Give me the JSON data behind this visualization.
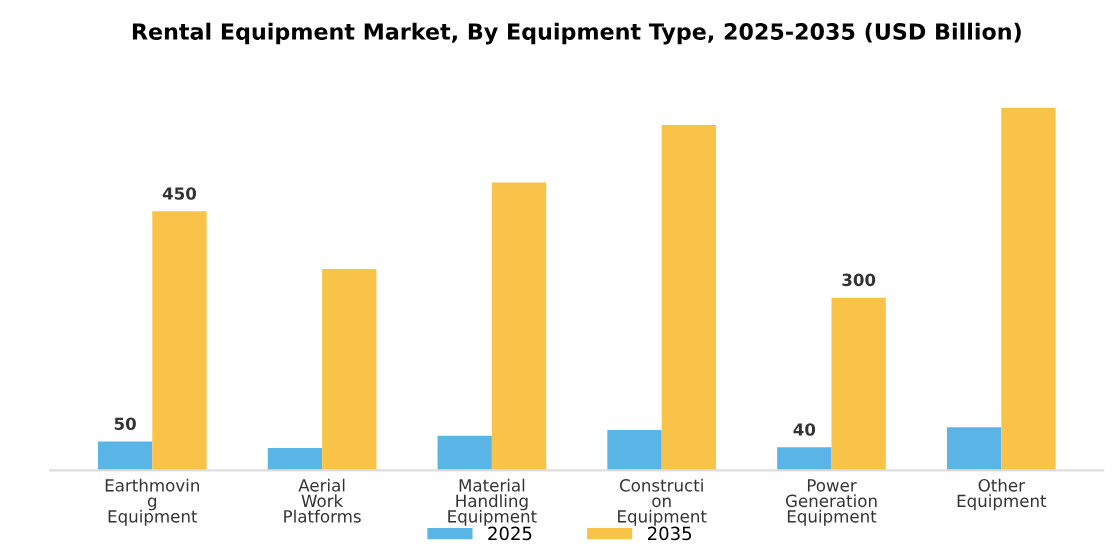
{
  "chart_data": {
    "type": "bar",
    "title": "Rental Equipment Market, By Equipment Type, 2025-2035 (USD Billion)",
    "categories": [
      "Earthmovin\ng\nEquipment",
      "Aerial\nWork\nPlatforms",
      "Material\nHandling\nEquipment",
      "Constructi\non\nEquipment",
      "Power\nGeneration\nEquipment",
      "Other\nEquipment"
    ],
    "series": [
      {
        "name": "2025",
        "color": "#5ab4e5",
        "values": [
          50,
          39,
          60,
          70,
          40,
          75
        ],
        "value_labels": [
          "50",
          null,
          null,
          null,
          "40",
          null
        ]
      },
      {
        "name": "2035",
        "color": "#f9c349",
        "values": [
          450,
          350,
          500,
          600,
          300,
          630
        ],
        "value_labels": [
          "450",
          null,
          null,
          null,
          "300",
          null
        ]
      }
    ],
    "legend": "bottom",
    "grid": false
  }
}
